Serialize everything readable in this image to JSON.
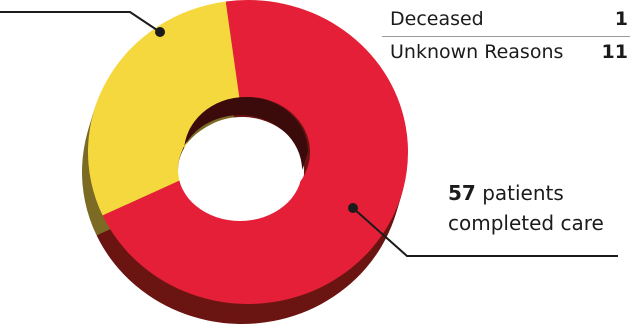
{
  "chart_data": {
    "type": "pie",
    "style": "3d-donut",
    "slices": [
      {
        "label": "completed care",
        "value": 57,
        "color": "#e41f37",
        "side_color": "#6b1512"
      },
      {
        "label": "",
        "value": 24,
        "color": "#f5d83e",
        "side_color": "#7c6b25"
      }
    ]
  },
  "table": {
    "rows": [
      {
        "label": "Deceased",
        "value": "1"
      },
      {
        "label": "Unknown Reasons",
        "value": "11"
      }
    ]
  },
  "callout": {
    "count": "57",
    "line1_text": " patients",
    "line2_text": "completed care"
  },
  "colors": {
    "leader_line": "#1b1b1b",
    "hole": "#ffffff"
  }
}
